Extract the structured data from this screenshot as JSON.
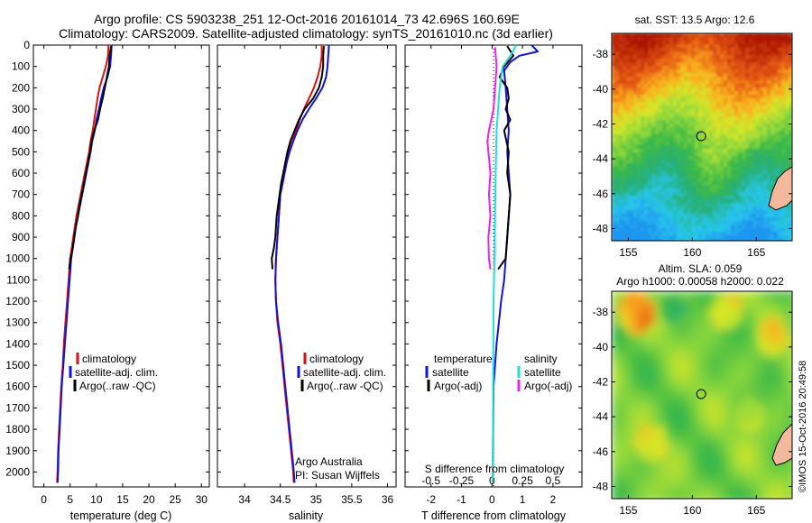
{
  "title": {
    "line1": "Argo profile: CS 5903238_251 12-Oct-2016 20161014_73 42.696S 160.69E",
    "line2": "Climatology: CARS2009. Satellite-adjusted climatology: synTS_20161010.nc (3d earlier)"
  },
  "credit": "©IMOS 15-Oct-2016 20:49:58",
  "colors": {
    "climatology": "#dd1111",
    "satellite": "#1111dd",
    "argo": "#000000",
    "sal_satellite": "#22dddd",
    "sal_argo": "#ee22ee"
  },
  "chart_data": [
    {
      "type": "line",
      "name": "temperature-profile",
      "xlabel": "temperature (deg C)",
      "xticks": [
        0,
        5,
        10,
        15,
        20,
        25,
        30
      ],
      "xlim": [
        -2,
        31.5
      ],
      "ylim": [
        2070,
        0
      ],
      "yticks": [
        0,
        100,
        200,
        300,
        400,
        500,
        600,
        700,
        800,
        900,
        1000,
        1100,
        1200,
        1300,
        1400,
        1500,
        1600,
        1700,
        1800,
        1900,
        2000
      ],
      "legend": [
        "climatology",
        "satellite-adj. clim.",
        "Argo(..raw -QC)"
      ],
      "series": [
        {
          "name": "climatology",
          "color": "#dd1111",
          "points": [
            [
              12.3,
              0
            ],
            [
              12.2,
              50
            ],
            [
              11.8,
              100
            ],
            [
              11.2,
              150
            ],
            [
              10.6,
              200
            ],
            [
              10.2,
              250
            ],
            [
              9.9,
              300
            ],
            [
              9.6,
              350
            ],
            [
              9.3,
              400
            ],
            [
              8.9,
              450
            ],
            [
              8.6,
              500
            ],
            [
              8.2,
              550
            ],
            [
              7.8,
              600
            ],
            [
              7.4,
              650
            ],
            [
              7.0,
              700
            ],
            [
              6.6,
              750
            ],
            [
              6.2,
              800
            ],
            [
              5.9,
              850
            ],
            [
              5.6,
              900
            ],
            [
              5.3,
              950
            ],
            [
              5.0,
              1000
            ],
            [
              4.7,
              1100
            ],
            [
              4.4,
              1200
            ],
            [
              4.1,
              1300
            ],
            [
              3.8,
              1400
            ],
            [
              3.6,
              1500
            ],
            [
              3.3,
              1600
            ],
            [
              3.1,
              1700
            ],
            [
              2.9,
              1800
            ],
            [
              2.7,
              1900
            ],
            [
              2.6,
              2000
            ],
            [
              2.5,
              2050
            ]
          ]
        },
        {
          "name": "satellite-adj. clim.",
          "color": "#1111dd",
          "points": [
            [
              12.9,
              0
            ],
            [
              12.8,
              50
            ],
            [
              12.6,
              100
            ],
            [
              12.1,
              150
            ],
            [
              11.4,
              200
            ],
            [
              10.9,
              250
            ],
            [
              10.5,
              300
            ],
            [
              10.0,
              350
            ],
            [
              9.7,
              400
            ],
            [
              9.2,
              450
            ],
            [
              8.9,
              500
            ],
            [
              8.5,
              550
            ],
            [
              8.1,
              600
            ],
            [
              7.7,
              650
            ],
            [
              7.3,
              700
            ],
            [
              6.9,
              750
            ],
            [
              6.5,
              800
            ],
            [
              6.1,
              850
            ],
            [
              5.8,
              900
            ],
            [
              5.5,
              950
            ],
            [
              5.2,
              1000
            ],
            [
              4.9,
              1100
            ],
            [
              4.6,
              1200
            ],
            [
              4.3,
              1300
            ],
            [
              4.0,
              1400
            ],
            [
              3.7,
              1500
            ],
            [
              3.4,
              1600
            ],
            [
              3.2,
              1700
            ],
            [
              3.0,
              1800
            ],
            [
              2.8,
              1900
            ],
            [
              2.7,
              2000
            ],
            [
              2.6,
              2050
            ]
          ]
        },
        {
          "name": "Argo(..raw -QC)",
          "color": "#000000",
          "points": [
            [
              12.8,
              5
            ],
            [
              12.5,
              50
            ],
            [
              12.4,
              100
            ],
            [
              12.0,
              150
            ],
            [
              11.6,
              200
            ],
            [
              11.2,
              250
            ],
            [
              10.7,
              300
            ],
            [
              10.3,
              350
            ],
            [
              9.6,
              400
            ],
            [
              9.1,
              450
            ],
            [
              8.8,
              500
            ],
            [
              8.4,
              550
            ],
            [
              8.0,
              600
            ],
            [
              7.6,
              650
            ],
            [
              7.2,
              700
            ],
            [
              6.8,
              750
            ],
            [
              6.5,
              800
            ],
            [
              6.1,
              850
            ],
            [
              5.8,
              900
            ],
            [
              5.5,
              950
            ],
            [
              5.1,
              1000
            ],
            [
              4.8,
              1050
            ]
          ]
        }
      ]
    },
    {
      "type": "line",
      "name": "salinity-profile",
      "xlabel": "salinity",
      "xticks": [
        34,
        34.5,
        35,
        35.5,
        36
      ],
      "xlim": [
        33.62,
        36.12
      ],
      "ylim": [
        2070,
        0
      ],
      "legend": [
        "climatology",
        "satellite-adj. clim.",
        "Argo(..raw -QC)"
      ],
      "annotation": [
        "Argo Australia",
        "PI: Susan Wijffels"
      ],
      "series": [
        {
          "name": "climatology",
          "color": "#dd1111",
          "points": [
            [
              35.08,
              0
            ],
            [
              35.08,
              50
            ],
            [
              35.06,
              100
            ],
            [
              35.02,
              150
            ],
            [
              34.97,
              200
            ],
            [
              34.9,
              250
            ],
            [
              34.83,
              300
            ],
            [
              34.77,
              350
            ],
            [
              34.72,
              400
            ],
            [
              34.67,
              450
            ],
            [
              34.62,
              500
            ],
            [
              34.59,
              550
            ],
            [
              34.56,
              600
            ],
            [
              34.53,
              650
            ],
            [
              34.5,
              700
            ],
            [
              34.48,
              800
            ],
            [
              34.46,
              900
            ],
            [
              34.44,
              1000
            ],
            [
              34.43,
              1100
            ],
            [
              34.44,
              1200
            ],
            [
              34.46,
              1300
            ],
            [
              34.5,
              1400
            ],
            [
              34.53,
              1500
            ],
            [
              34.56,
              1600
            ],
            [
              34.59,
              1700
            ],
            [
              34.62,
              1800
            ],
            [
              34.65,
              1900
            ],
            [
              34.68,
              2000
            ],
            [
              34.69,
              2050
            ]
          ]
        },
        {
          "name": "satellite-adj. clim.",
          "color": "#1111dd",
          "points": [
            [
              35.18,
              0
            ],
            [
              35.17,
              50
            ],
            [
              35.16,
              100
            ],
            [
              35.14,
              150
            ],
            [
              35.09,
              200
            ],
            [
              35.0,
              250
            ],
            [
              34.9,
              300
            ],
            [
              34.81,
              350
            ],
            [
              34.74,
              400
            ],
            [
              34.68,
              450
            ],
            [
              34.63,
              500
            ],
            [
              34.59,
              550
            ],
            [
              34.56,
              600
            ],
            [
              34.53,
              650
            ],
            [
              34.5,
              700
            ],
            [
              34.48,
              800
            ],
            [
              34.46,
              900
            ],
            [
              34.44,
              1000
            ],
            [
              34.43,
              1100
            ],
            [
              34.44,
              1200
            ],
            [
              34.47,
              1300
            ],
            [
              34.51,
              1400
            ],
            [
              34.54,
              1500
            ],
            [
              34.57,
              1600
            ],
            [
              34.6,
              1700
            ],
            [
              34.63,
              1800
            ],
            [
              34.66,
              1900
            ],
            [
              34.69,
              2000
            ],
            [
              34.7,
              2050
            ]
          ]
        },
        {
          "name": "Argo(..raw -QC)",
          "color": "#000000",
          "points": [
            [
              35.11,
              5
            ],
            [
              35.1,
              50
            ],
            [
              35.1,
              100
            ],
            [
              35.08,
              150
            ],
            [
              35.04,
              200
            ],
            [
              34.96,
              250
            ],
            [
              34.84,
              300
            ],
            [
              34.76,
              350
            ],
            [
              34.7,
              400
            ],
            [
              34.64,
              450
            ],
            [
              34.6,
              500
            ],
            [
              34.57,
              550
            ],
            [
              34.54,
              600
            ],
            [
              34.51,
              650
            ],
            [
              34.49,
              700
            ],
            [
              34.47,
              750
            ],
            [
              34.45,
              800
            ],
            [
              34.44,
              850
            ],
            [
              34.43,
              900
            ],
            [
              34.41,
              950
            ],
            [
              34.38,
              1000
            ],
            [
              34.39,
              1050
            ]
          ]
        }
      ]
    },
    {
      "type": "line",
      "name": "difference-profile",
      "xlabel": "T difference from climatology",
      "xticks_bottom": [
        -2,
        -1,
        0,
        1,
        2
      ],
      "xlim": [
        -2.85,
        2.95
      ],
      "top_axis_label": "S difference from climatology",
      "top_ticks": [
        "-0.5",
        "-0.25",
        "0",
        "0.25",
        "0.5"
      ],
      "top_tick_values": [
        -2,
        -1,
        0,
        1,
        2
      ],
      "ylim": [
        2070,
        0
      ],
      "legend": {
        "temperature_header": "temperature",
        "salinity_header": "salinity",
        "temperature": [
          "satellite",
          "Argo(-adj)"
        ],
        "salinity": [
          "satellite",
          "Argo(-adj)"
        ]
      },
      "series": [
        {
          "name": "satellite",
          "color": "#1111dd",
          "points": [
            [
              1.3,
              0
            ],
            [
              1.5,
              30
            ],
            [
              0.9,
              50
            ],
            [
              0.6,
              80
            ],
            [
              0.4,
              120
            ],
            [
              0.45,
              200
            ],
            [
              0.5,
              300
            ],
            [
              0.55,
              400
            ],
            [
              0.5,
              500
            ],
            [
              0.55,
              600
            ],
            [
              0.6,
              700
            ],
            [
              0.55,
              800
            ],
            [
              0.5,
              900
            ],
            [
              0.45,
              1000
            ],
            [
              0.4,
              1100
            ],
            [
              0.3,
              1200
            ],
            [
              0.15,
              1400
            ],
            [
              0.05,
              1600
            ],
            [
              0.02,
              2050
            ]
          ]
        },
        {
          "name": "Argo(-adj)",
          "color": "#000000",
          "points": [
            [
              0.5,
              5
            ],
            [
              0.7,
              50
            ],
            [
              0.4,
              100
            ],
            [
              0.25,
              150
            ],
            [
              0.5,
              200
            ],
            [
              0.55,
              250
            ],
            [
              0.45,
              300
            ],
            [
              0.6,
              350
            ],
            [
              0.4,
              400
            ],
            [
              0.55,
              500
            ],
            [
              0.5,
              600
            ],
            [
              0.6,
              700
            ],
            [
              0.55,
              800
            ],
            [
              0.5,
              900
            ],
            [
              0.45,
              1000
            ],
            [
              0.2,
              1050
            ]
          ]
        },
        {
          "name": "salinity satellite",
          "color": "#22dddd",
          "points": [
            [
              0.8,
              0
            ],
            [
              0.6,
              50
            ],
            [
              0.35,
              100
            ],
            [
              0.25,
              200
            ],
            [
              0.2,
              300
            ],
            [
              0.15,
              400
            ],
            [
              0.12,
              600
            ],
            [
              0.1,
              800
            ],
            [
              0.08,
              1000
            ],
            [
              0.05,
              1200
            ],
            [
              0.04,
              1500
            ],
            [
              0.02,
              2050
            ]
          ]
        },
        {
          "name": "salinity Argo(-adj)",
          "color": "#ee22ee",
          "points": [
            [
              0.1,
              10
            ],
            [
              0.15,
              100
            ],
            [
              0.05,
              300
            ],
            [
              -0.1,
              400
            ],
            [
              -0.15,
              450
            ],
            [
              -0.05,
              600
            ],
            [
              -0.1,
              700
            ],
            [
              -0.05,
              800
            ],
            [
              -0.12,
              900
            ],
            [
              -0.1,
              1000
            ],
            [
              -0.05,
              1050
            ]
          ]
        }
      ]
    },
    {
      "type": "heatmap",
      "name": "sst-map",
      "title": "sat. SST: 13.5 Argo: 12.6",
      "xticks": [
        155,
        160,
        165
      ],
      "yticks": [
        -38,
        -40,
        -42,
        -44,
        -46,
        -48
      ],
      "xlim": [
        153.7,
        167.8
      ],
      "ylim": [
        -48.7,
        -36.8
      ],
      "float_position": [
        160.69,
        -42.696
      ]
    },
    {
      "type": "heatmap",
      "name": "sla-map",
      "title": [
        "Altim. SLA: 0.059",
        "Argo h1000: 0.00058 h2000: 0.022"
      ],
      "xticks": [
        155,
        160,
        165
      ],
      "yticks": [
        -38,
        -40,
        -42,
        -44,
        -46,
        -48
      ],
      "xlim": [
        153.7,
        167.8
      ],
      "ylim": [
        -48.7,
        -36.8
      ],
      "float_position": [
        160.69,
        -42.696
      ]
    }
  ]
}
